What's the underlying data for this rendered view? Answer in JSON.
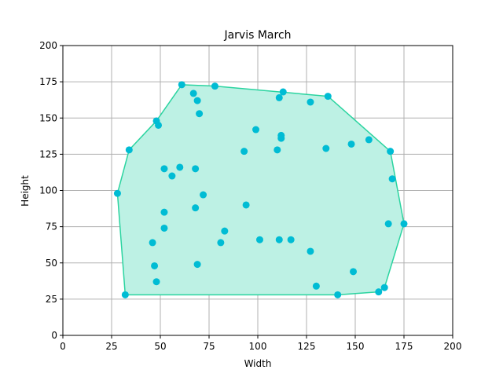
{
  "chart_data": {
    "type": "scatter",
    "title": "Jarvis March",
    "xlabel": "Width",
    "ylabel": "Height",
    "xlim": [
      0,
      200
    ],
    "ylim": [
      0,
      200
    ],
    "xticks": [
      0,
      25,
      50,
      75,
      100,
      125,
      150,
      175,
      200
    ],
    "yticks": [
      0,
      25,
      50,
      75,
      100,
      125,
      150,
      175,
      200
    ],
    "grid": true,
    "point_color": "#00bcd4",
    "hull_line_color": "#2bd4a0",
    "hull_fill_color": "#bdf1e4",
    "points": [
      [
        61,
        173
      ],
      [
        78,
        172
      ],
      [
        67,
        167
      ],
      [
        69,
        162
      ],
      [
        70,
        153
      ],
      [
        48,
        148
      ],
      [
        49,
        145
      ],
      [
        113,
        168
      ],
      [
        111,
        164
      ],
      [
        127,
        161
      ],
      [
        136,
        165
      ],
      [
        99,
        142
      ],
      [
        112,
        138
      ],
      [
        112,
        136
      ],
      [
        148,
        132
      ],
      [
        157,
        135
      ],
      [
        135,
        129
      ],
      [
        110,
        128
      ],
      [
        93,
        127
      ],
      [
        168,
        127
      ],
      [
        34,
        128
      ],
      [
        52,
        115
      ],
      [
        60,
        116
      ],
      [
        68,
        115
      ],
      [
        56,
        110
      ],
      [
        169,
        108
      ],
      [
        28,
        98
      ],
      [
        72,
        97
      ],
      [
        94,
        90
      ],
      [
        68,
        88
      ],
      [
        52,
        85
      ],
      [
        167,
        77
      ],
      [
        175,
        77
      ],
      [
        52,
        74
      ],
      [
        83,
        72
      ],
      [
        46,
        64
      ],
      [
        81,
        64
      ],
      [
        101,
        66
      ],
      [
        111,
        66
      ],
      [
        117,
        66
      ],
      [
        127,
        58
      ],
      [
        47,
        48
      ],
      [
        69,
        49
      ],
      [
        149,
        44
      ],
      [
        48,
        37
      ],
      [
        130,
        34
      ],
      [
        165,
        33
      ],
      [
        162,
        30
      ],
      [
        32,
        28
      ],
      [
        141,
        28
      ]
    ],
    "hull": [
      [
        61,
        173
      ],
      [
        78,
        172
      ],
      [
        136,
        165
      ],
      [
        168,
        127
      ],
      [
        175,
        77
      ],
      [
        165,
        33
      ],
      [
        162,
        30
      ],
      [
        141,
        28
      ],
      [
        32,
        28
      ],
      [
        28,
        98
      ],
      [
        34,
        128
      ],
      [
        48,
        148
      ]
    ]
  }
}
